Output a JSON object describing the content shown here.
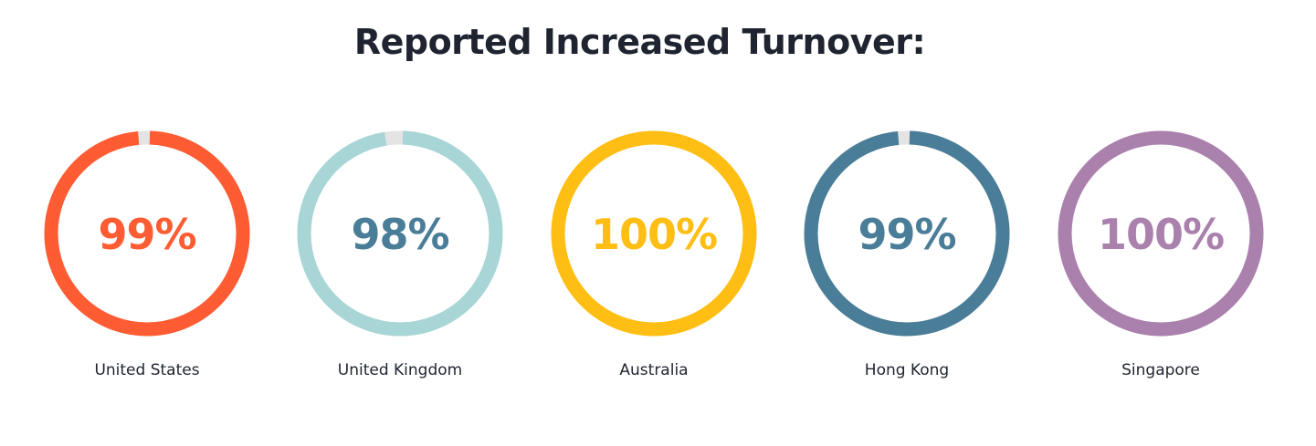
{
  "chart_data": {
    "type": "pie",
    "title": "Reported Increased Turnover:",
    "categories": [
      "United States",
      "United Kingdom",
      "Australia",
      "Hong Kong",
      "Singapore"
    ],
    "values": [
      99,
      98,
      100,
      99,
      100
    ],
    "value_labels": [
      "99%",
      "98%",
      "100%",
      "99%",
      "100%"
    ],
    "unit": "%",
    "max": 100,
    "colors": [
      "#ff5c33",
      "#a8d5d6",
      "#ffbe13",
      "#4a7d97",
      "#aa80ad"
    ],
    "value_colors": [
      "#ff5c33",
      "#4a7d97",
      "#ffbe13",
      "#4a7d97",
      "#aa80ad"
    ],
    "track_color": "#e4e4e4",
    "legend": "none",
    "grid": false
  }
}
